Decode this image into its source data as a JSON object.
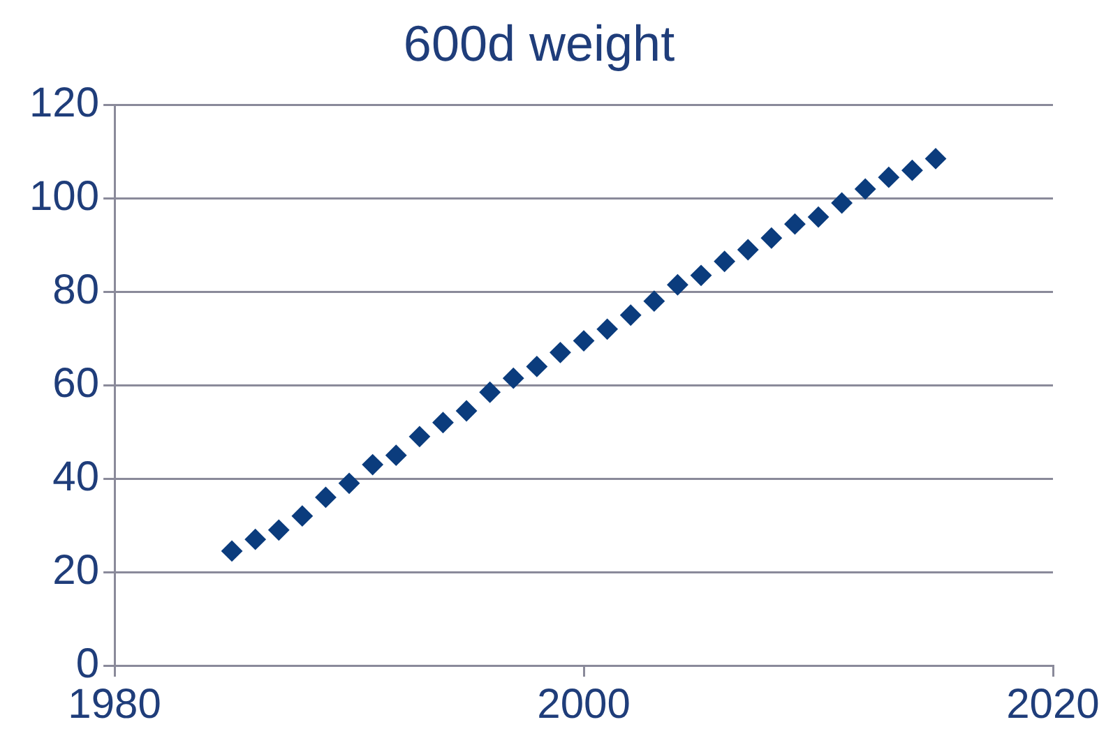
{
  "chart_data": {
    "type": "scatter",
    "title": "600d weight",
    "x": [
      1985,
      1986,
      1987,
      1988,
      1989,
      1990,
      1991,
      1992,
      1993,
      1994,
      1995,
      1996,
      1997,
      1998,
      1999,
      2000,
      2001,
      2002,
      2003,
      2004,
      2005,
      2006,
      2007,
      2008,
      2009,
      2010,
      2011,
      2012,
      2013,
      2014,
      2015
    ],
    "series": [
      {
        "color": "#0b3c7d",
        "values": [
          24.5,
          27,
          29,
          32,
          36,
          39,
          43,
          45,
          49,
          52,
          54.5,
          58.5,
          61.5,
          64,
          67,
          69.5,
          72,
          75,
          78,
          81.5,
          83.5,
          86.5,
          89,
          91.5,
          94.5,
          96,
          99,
          102,
          104.5,
          106,
          108.5
        ]
      }
    ],
    "xlim": [
      1980,
      2020
    ],
    "xticks": [
      1980,
      2000,
      2020
    ],
    "ylim": [
      0,
      120
    ],
    "yticks": [
      0,
      20,
      40,
      60,
      80,
      100,
      120
    ],
    "grid": "y",
    "legend": false,
    "marker": "diamond"
  }
}
